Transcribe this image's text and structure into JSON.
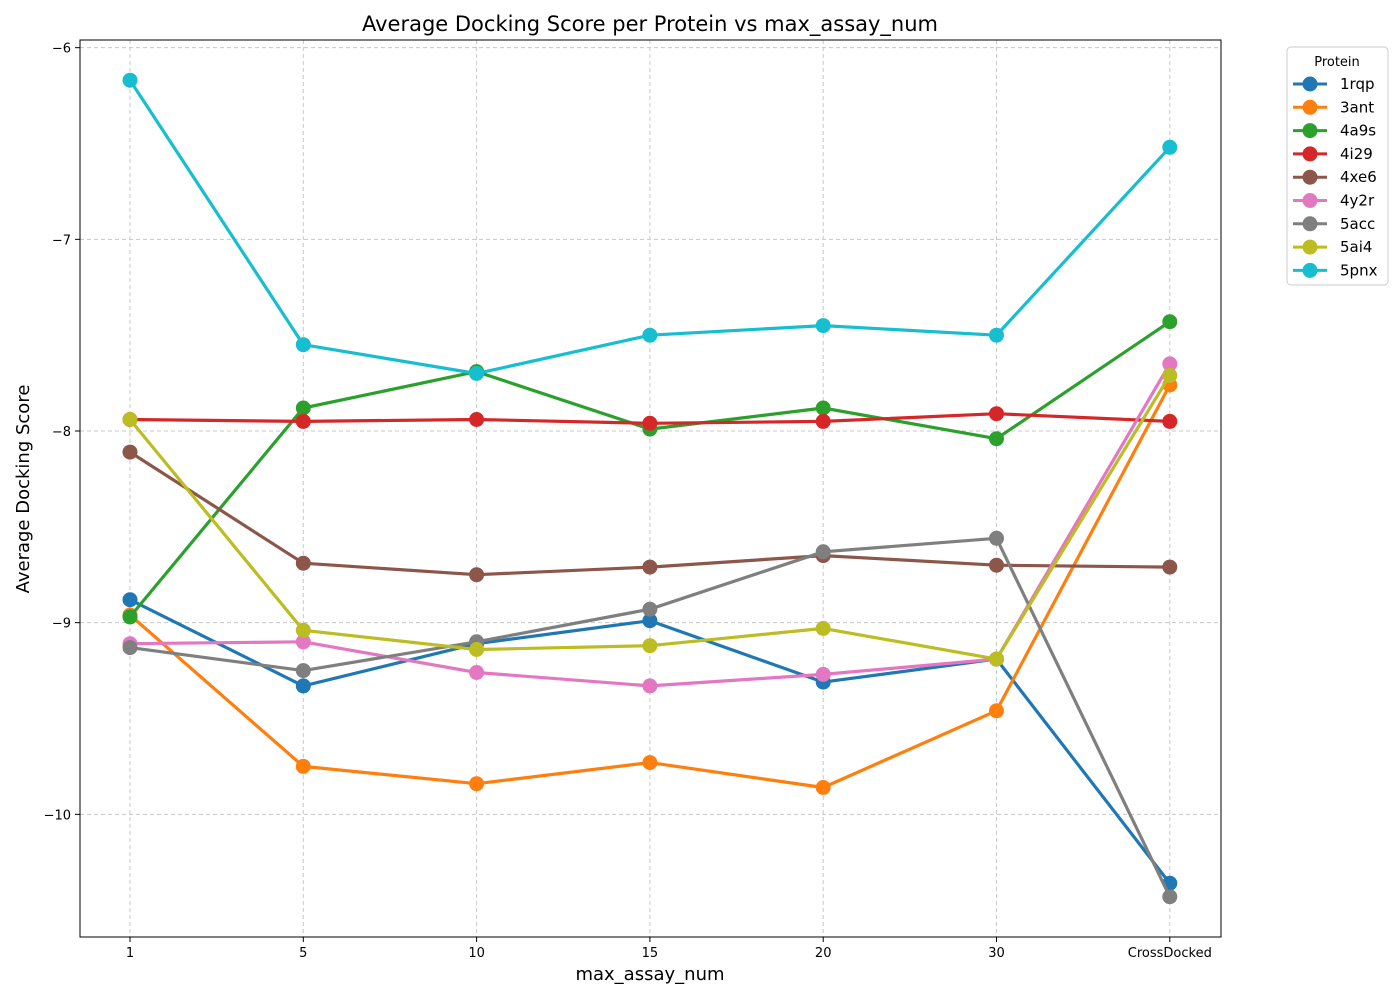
{
  "chart_data": {
    "type": "line",
    "title": "Average Docking Score per Protein vs max_assay_num",
    "xlabel": "max_assay_num",
    "ylabel": "Average Docking Score",
    "categories": [
      "1",
      "5",
      "10",
      "15",
      "20",
      "30",
      "CrossDocked"
    ],
    "yticks": [
      -10,
      -9,
      -8,
      -7,
      -6
    ],
    "ytick_labels": [
      "−10",
      "−9",
      "−8",
      "−7",
      "−6"
    ],
    "ylim": [
      -10.64,
      -5.96
    ],
    "grid": true,
    "legend": {
      "title": "Protein",
      "position": "outside-top-right"
    },
    "series": [
      {
        "name": "1rqp",
        "color": "#1f77b4",
        "values": [
          -8.88,
          -9.33,
          -9.11,
          -8.99,
          -9.31,
          -9.19,
          -10.36
        ]
      },
      {
        "name": "3ant",
        "color": "#ff7f0e",
        "values": [
          -8.96,
          -9.75,
          -9.84,
          -9.73,
          -9.86,
          -9.46,
          -7.76
        ]
      },
      {
        "name": "4a9s",
        "color": "#2ca02c",
        "values": [
          -8.97,
          -7.88,
          -7.69,
          -7.99,
          -7.88,
          -8.04,
          -7.43
        ]
      },
      {
        "name": "4i29",
        "color": "#d62728",
        "values": [
          -7.94,
          -7.95,
          -7.94,
          -7.96,
          -7.95,
          -7.91,
          -7.95
        ]
      },
      {
        "name": "4xe6",
        "color": "#8c564b",
        "values": [
          -8.11,
          -8.69,
          -8.75,
          -8.71,
          -8.65,
          -8.7,
          -8.71
        ]
      },
      {
        "name": "4y2r",
        "color": "#e377c2",
        "values": [
          -9.11,
          -9.1,
          -9.26,
          -9.33,
          -9.27,
          -9.19,
          -7.65
        ]
      },
      {
        "name": "5acc",
        "color": "#7f7f7f",
        "values": [
          -9.13,
          -9.25,
          -9.1,
          -8.93,
          -8.63,
          -8.56,
          -10.43
        ]
      },
      {
        "name": "5ai4",
        "color": "#bcbd22",
        "values": [
          -7.94,
          -9.04,
          -9.14,
          -9.12,
          -9.03,
          -9.19,
          -7.71
        ]
      },
      {
        "name": "5pnx",
        "color": "#17becf",
        "values": [
          -6.17,
          -7.55,
          -7.7,
          -7.5,
          -7.45,
          -7.5,
          -6.52
        ]
      }
    ]
  }
}
